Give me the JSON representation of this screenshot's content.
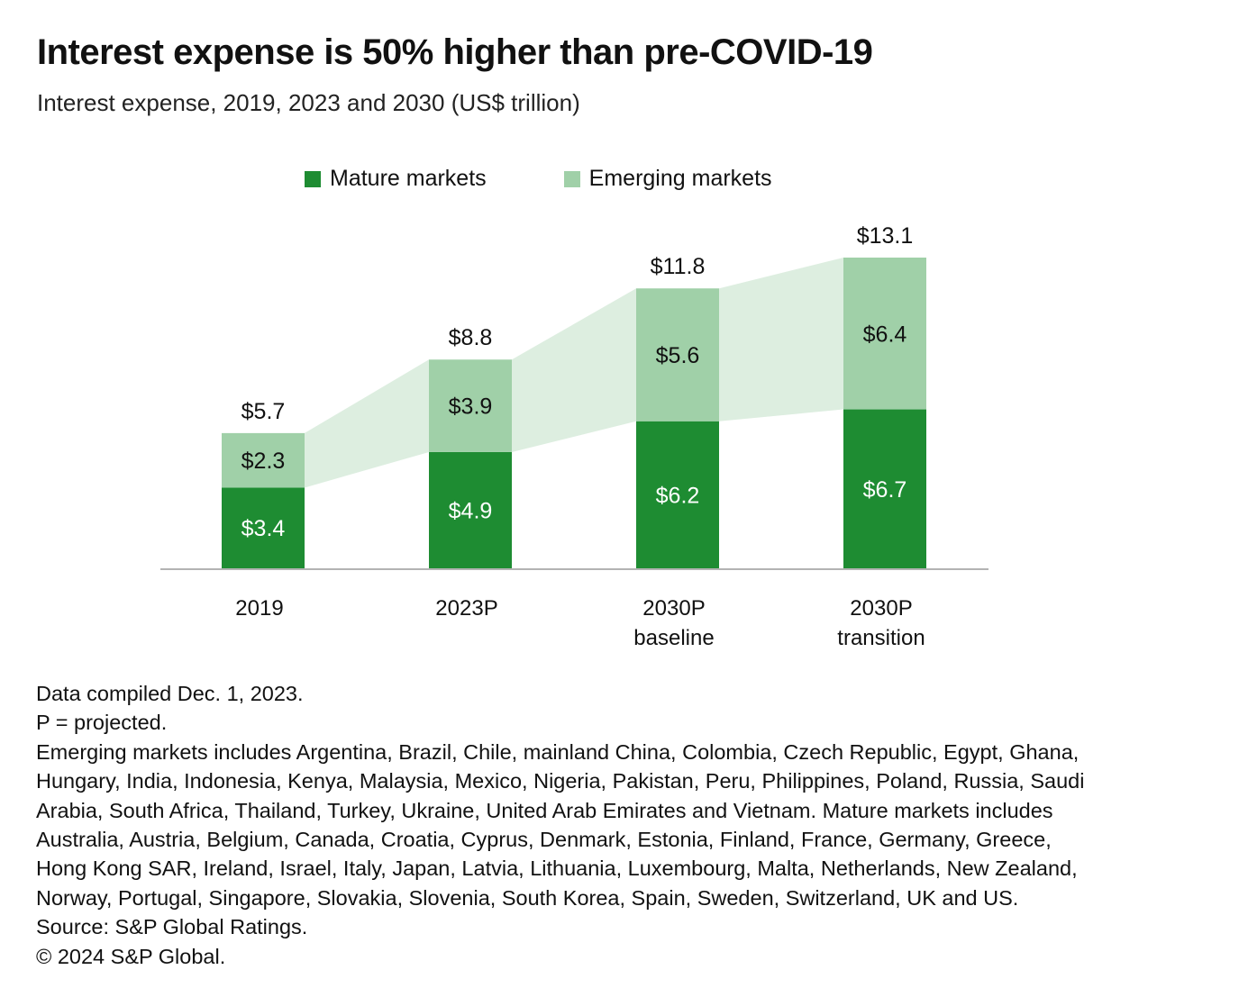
{
  "title": "Interest expense is 50% higher than pre-COVID-19",
  "subtitle": "Interest expense, 2019, 2023 and 2030 (US$ trillion)",
  "colors": {
    "mature": "#1e8c32",
    "emerging": "#a0d0a8",
    "band": "#ddeee0",
    "axis": "#b3b3b3"
  },
  "chart_data": {
    "type": "bar",
    "stacked": true,
    "title": "Interest expense is 50% higher than pre-COVID-19",
    "subtitle": "Interest expense, 2019, 2023 and 2030 (US$ trillion)",
    "xlabel": "",
    "ylabel": "",
    "ylim": [
      0,
      13.1
    ],
    "grid": false,
    "legend_position": "top-center",
    "categories": [
      [
        "2019"
      ],
      [
        "2023P"
      ],
      [
        "2030P",
        "baseline"
      ],
      [
        "2030P",
        "transition"
      ]
    ],
    "series": [
      {
        "name": "Mature markets",
        "values": [
          3.4,
          4.9,
          6.2,
          6.7
        ],
        "labels": [
          "$3.4",
          "$4.9",
          "$6.2",
          "$6.7"
        ]
      },
      {
        "name": "Emerging markets",
        "values": [
          2.3,
          3.9,
          5.6,
          6.4
        ],
        "labels": [
          "$2.3",
          "$3.9",
          "$5.6",
          "$6.4"
        ]
      }
    ],
    "totals": [
      5.7,
      8.8,
      11.8,
      13.1
    ],
    "total_labels": [
      "$5.7",
      "$8.8",
      "$11.8",
      "$13.1"
    ],
    "annotations": [
      "Shaded band connects emerging markets segments across bars"
    ]
  },
  "legend": [
    {
      "label": "Mature markets"
    },
    {
      "label": "Emerging markets"
    }
  ],
  "notes": [
    "Data compiled Dec. 1, 2023.",
    "P = projected.",
    "Emerging markets includes Argentina, Brazil, Chile, mainland China, Colombia, Czech Republic, Egypt, Ghana,",
    "Hungary, India, Indonesia, Kenya, Malaysia, Mexico, Nigeria, Pakistan, Peru, Philippines, Poland, Russia, Saudi",
    "Arabia, South Africa, Thailand, Turkey, Ukraine, United Arab Emirates and Vietnam. Mature markets includes",
    "Australia, Austria, Belgium, Canada, Croatia, Cyprus, Denmark, Estonia, Finland, France, Germany, Greece,",
    "Hong Kong SAR, Ireland, Israel, Italy, Japan, Latvia, Lithuania, Luxembourg, Malta, Netherlands, New Zealand,",
    "Norway, Portugal, Singapore, Slovakia, Slovenia, South Korea, Spain, Sweden, Switzerland, UK and US.",
    "Source: S&P Global Ratings.",
    "© 2024 S&P Global."
  ]
}
